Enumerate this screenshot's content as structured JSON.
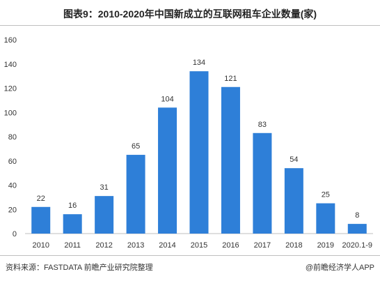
{
  "title": "图表9：2010-2020年中国新成立的互联网租车企业数量(家)",
  "source": "资料来源：FASTDATA 前瞻产业研究院整理",
  "credit": "@前瞻经济学人APP",
  "colors": {
    "bar": "#2e7fd8",
    "text": "#333333",
    "grid": "#d9d9d9"
  },
  "chart_data": {
    "type": "bar",
    "categories": [
      "2010",
      "2011",
      "2012",
      "2013",
      "2014",
      "2015",
      "2016",
      "2017",
      "2018",
      "2019",
      "2020.1-9"
    ],
    "values": [
      22,
      16,
      31,
      65,
      104,
      134,
      121,
      83,
      54,
      25,
      8
    ],
    "ylim": [
      0,
      160
    ],
    "yticks": [
      0,
      20,
      40,
      60,
      80,
      100,
      120,
      140,
      160
    ],
    "grid": false,
    "legend": "none",
    "data_labels": true
  }
}
